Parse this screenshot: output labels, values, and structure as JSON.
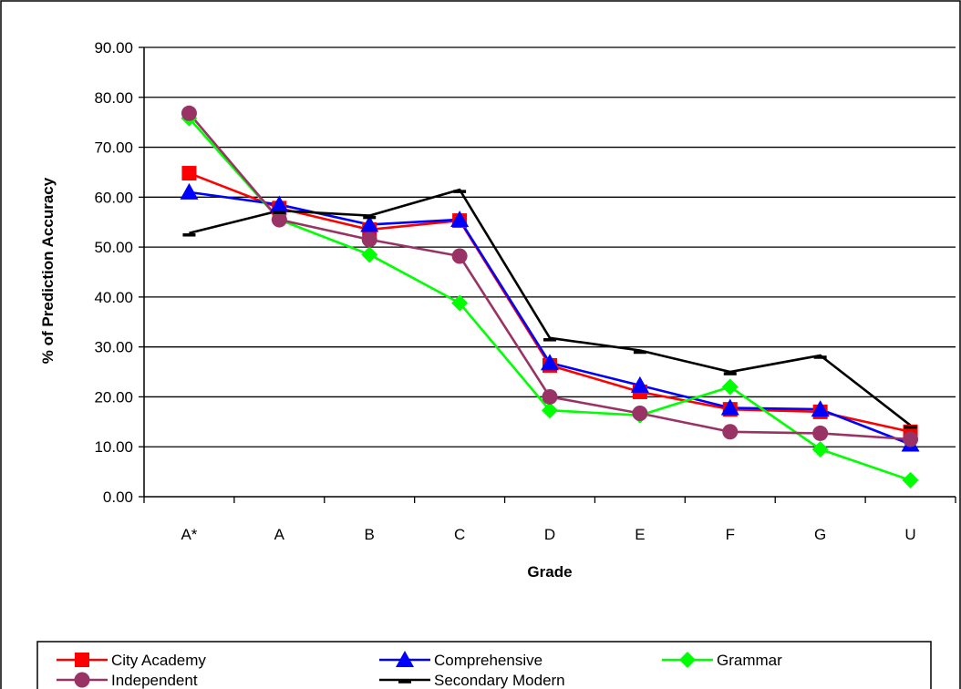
{
  "chart_data": {
    "type": "line",
    "title": "",
    "xlabel": "Grade",
    "ylabel": "% of Prediction Accuracy",
    "categories": [
      "A*",
      "A",
      "B",
      "C",
      "D",
      "E",
      "F",
      "G",
      "U"
    ],
    "y_ticks": [
      "0.00",
      "10.00",
      "20.00",
      "30.00",
      "40.00",
      "50.00",
      "60.00",
      "70.00",
      "80.00",
      "90.00"
    ],
    "ylim": [
      0,
      90
    ],
    "grid": "horizontal",
    "legend_position": "bottom",
    "series": [
      {
        "name": "City Academy",
        "color": "#ff0000",
        "marker": "square",
        "values": [
          64.8,
          57.8,
          53.5,
          55.3,
          26.3,
          21.0,
          17.5,
          17.0,
          13.0
        ]
      },
      {
        "name": "Comprehensive",
        "color": "#0000ff",
        "marker": "triangle",
        "values": [
          61.0,
          58.5,
          54.5,
          55.5,
          26.8,
          22.3,
          17.8,
          17.5,
          10.5
        ]
      },
      {
        "name": "Grammar",
        "color": "#00ff00",
        "marker": "diamond",
        "values": [
          75.8,
          55.5,
          48.5,
          38.8,
          17.3,
          16.3,
          22.0,
          9.5,
          3.3
        ]
      },
      {
        "name": "Independent",
        "color": "#993366",
        "marker": "circle",
        "values": [
          76.8,
          55.5,
          51.5,
          48.2,
          20.0,
          16.7,
          13.0,
          12.7,
          11.5
        ]
      },
      {
        "name": "Secondary Modern",
        "color": "#000000",
        "marker": "dash",
        "values": [
          52.8,
          57.3,
          56.3,
          61.5,
          31.8,
          29.3,
          25.0,
          28.3,
          14.3
        ]
      }
    ]
  }
}
